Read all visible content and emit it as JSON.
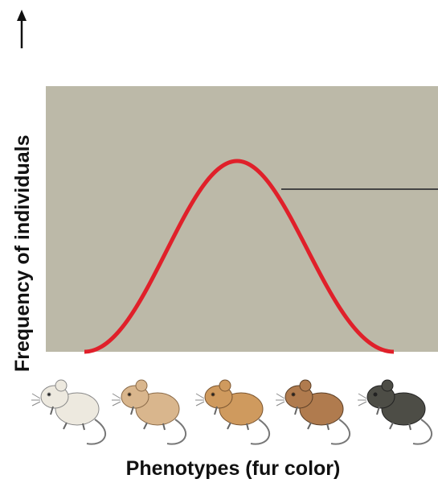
{
  "y_axis_label": "Frequency of individuals",
  "x_axis_label": "Phenotypes (fur color)"
}
